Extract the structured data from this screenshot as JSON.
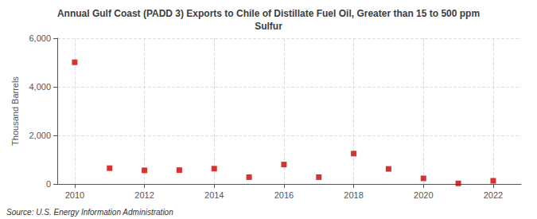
{
  "chart_data": {
    "type": "scatter",
    "title": "Annual Gulf Coast (PADD 3) Exports to Chile of Distillate Fuel Oil, Greater than 15 to 500 ppm\nSulfur",
    "ylabel": "Thousand Barrels",
    "source": "Source: U.S. Energy Information Administration",
    "x": [
      2010,
      2011,
      2012,
      2013,
      2014,
      2015,
      2016,
      2017,
      2018,
      2019,
      2020,
      2021,
      2022
    ],
    "values": [
      5010,
      650,
      560,
      570,
      630,
      280,
      800,
      280,
      1250,
      620,
      230,
      25,
      130
    ],
    "color": "#cc0000",
    "marker": "square",
    "xlim": [
      2009.5,
      2022.8
    ],
    "xticks": [
      2010,
      2012,
      2014,
      2016,
      2018,
      2020,
      2022
    ],
    "ylim": [
      0,
      6000
    ],
    "yticks": [
      0,
      {
        "value": 2000,
        "label": "2,000"
      },
      {
        "value": 4000,
        "label": "4,000"
      },
      {
        "value": 6000,
        "label": "6,000"
      }
    ],
    "grid": true
  }
}
